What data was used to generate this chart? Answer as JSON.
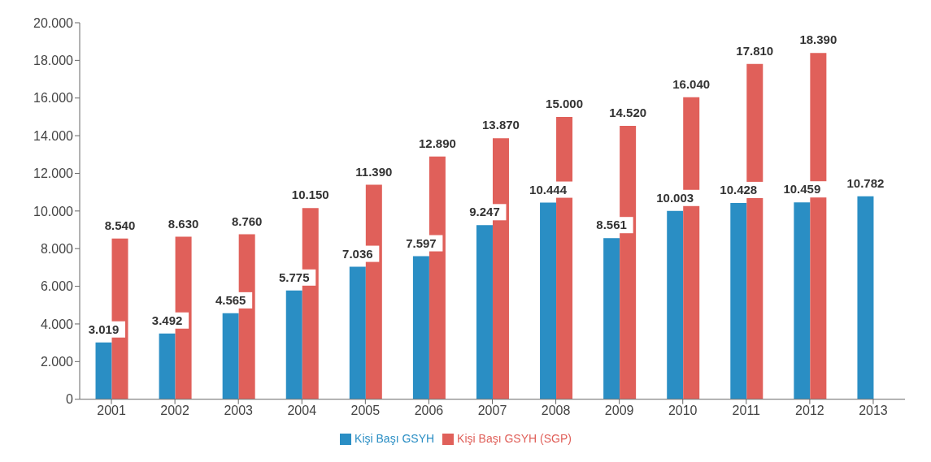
{
  "chart_data": {
    "type": "bar",
    "categories": [
      "2001",
      "2002",
      "2003",
      "2004",
      "2005",
      "2006",
      "2007",
      "2008",
      "2009",
      "2010",
      "2011",
      "2012",
      "2013"
    ],
    "series": [
      {
        "name": "Kişi Başı GSYH",
        "color": "#2a8ec4",
        "values": [
          3019,
          3492,
          4565,
          5775,
          7036,
          7597,
          9247,
          10444,
          8561,
          10003,
          10428,
          10459,
          10782
        ],
        "value_labels": [
          "3.019",
          "3.492",
          "4.565",
          "5.775",
          "7.036",
          "7.597",
          "9.247",
          "10.444",
          "8.561",
          "10.003",
          "10.428",
          "10.459",
          "10.782"
        ]
      },
      {
        "name": "Kişi Başı GSYH (SGP)",
        "color": "#e0605a",
        "values": [
          8540,
          8630,
          8760,
          10150,
          11390,
          12890,
          13870,
          15000,
          14520,
          16040,
          17810,
          18390,
          null
        ],
        "value_labels": [
          "8.540",
          "8.630",
          "8.760",
          "10.150",
          "11.390",
          "12.890",
          "13.870",
          "15.000",
          "14.520",
          "16.040",
          "17.810",
          "18.390",
          null
        ]
      }
    ],
    "ylim": [
      0,
      20000
    ],
    "yticks": [
      {
        "value": 0,
        "label": "0"
      },
      {
        "value": 2000,
        "label": "2.000"
      },
      {
        "value": 4000,
        "label": "4.000"
      },
      {
        "value": 6000,
        "label": "6.000"
      },
      {
        "value": 8000,
        "label": "8.000"
      },
      {
        "value": 10000,
        "label": "10.000"
      },
      {
        "value": 12000,
        "label": "12.000"
      },
      {
        "value": 14000,
        "label": "14.000"
      },
      {
        "value": 16000,
        "label": "16.000"
      },
      {
        "value": 18000,
        "label": "18.000"
      },
      {
        "value": 20000,
        "label": "20.000"
      }
    ],
    "grid": false,
    "legend": "bottom"
  }
}
